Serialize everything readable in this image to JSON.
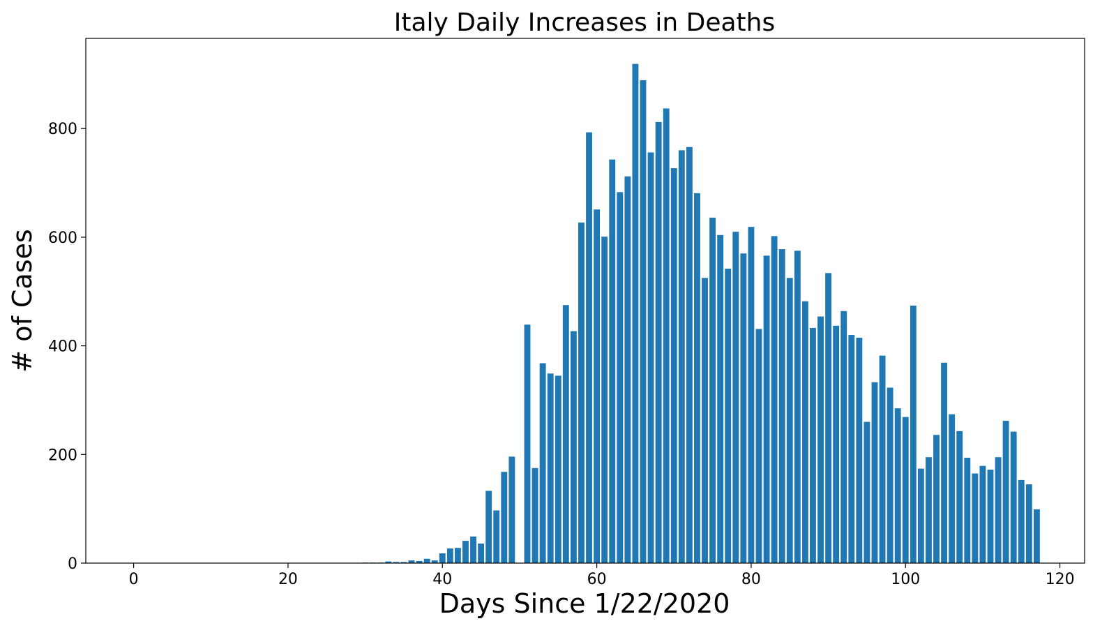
{
  "chart_data": {
    "type": "bar",
    "title": "Italy Daily Increases in Deaths",
    "xlabel": "Days Since 1/22/2020",
    "ylabel": "# of Cases",
    "xlim": [
      -6.2,
      123.2
    ],
    "ylim": [
      0,
      966
    ],
    "xticks": [
      0,
      20,
      40,
      60,
      80,
      100,
      120
    ],
    "yticks": [
      0,
      200,
      400,
      600,
      800
    ],
    "bar_color": "#1f77b4",
    "grid": false,
    "legend": "none",
    "values": [
      0,
      0,
      0,
      0,
      0,
      0,
      0,
      0,
      0,
      0,
      0,
      0,
      0,
      0,
      0,
      0,
      0,
      0,
      0,
      0,
      0,
      0,
      0,
      0,
      0,
      0,
      0,
      0,
      0,
      0,
      1,
      1,
      1,
      3,
      2,
      2,
      5,
      4,
      8,
      5,
      18,
      27,
      28,
      41,
      49,
      36,
      133,
      97,
      168,
      196,
      0,
      439,
      175,
      368,
      349,
      345,
      475,
      427,
      627,
      793,
      651,
      601,
      743,
      683,
      712,
      919,
      889,
      756,
      812,
      837,
      727,
      760,
      766,
      681,
      525,
      636,
      604,
      542,
      610,
      570,
      619,
      431,
      566,
      602,
      578,
      525,
      575,
      482,
      433,
      454,
      534,
      437,
      464,
      420,
      415,
      260,
      333,
      382,
      323,
      285,
      269,
      474,
      174,
      195,
      236,
      369,
      274,
      243,
      194,
      165,
      179,
      172,
      195,
      262,
      242,
      153,
      145,
      99
    ]
  }
}
